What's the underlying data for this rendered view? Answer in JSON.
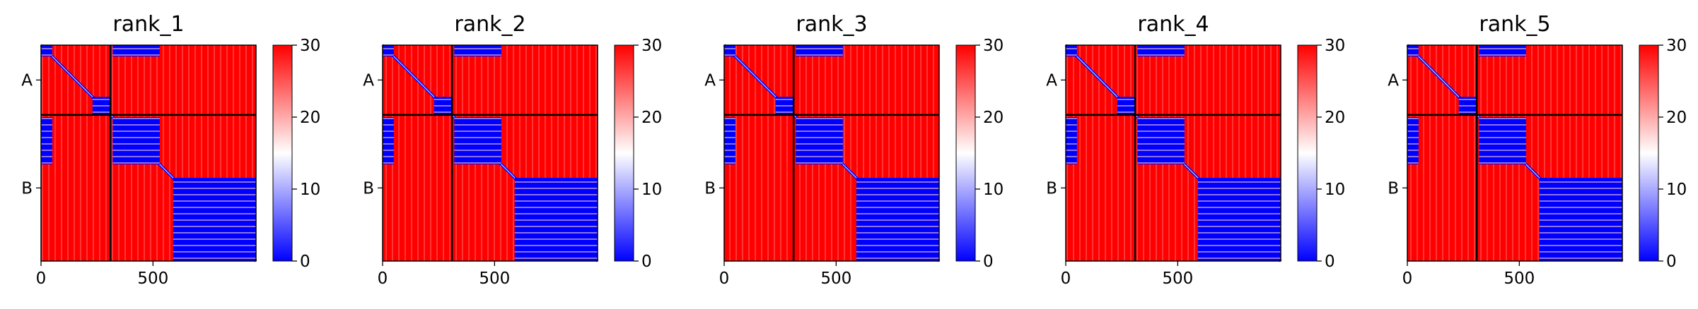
{
  "chart_data": [
    {
      "type": "heatmap",
      "title": "rank_1",
      "x_ticks": [
        0,
        500
      ],
      "y_ticks": [
        "A",
        "B"
      ],
      "xlim": [
        0,
        960
      ],
      "chain_boundaries": [
        310
      ],
      "colorbar": {
        "min": 0,
        "max": 30,
        "ticks": [
          "0",
          "10",
          "20",
          "30"
        ],
        "colormap": "bwr"
      },
      "low_blocks": [
        [
          0,
          310,
          0,
          310,
          "diag"
        ],
        [
          310,
          960,
          310,
          960,
          "diag"
        ],
        [
          0,
          50,
          0,
          50,
          "full"
        ],
        [
          230,
          310,
          230,
          310,
          "full"
        ],
        [
          320,
          530,
          320,
          530,
          "full"
        ],
        [
          590,
          960,
          590,
          960,
          "full"
        ],
        [
          320,
          530,
          0,
          50,
          "full"
        ],
        [
          0,
          50,
          320,
          530,
          "full"
        ]
      ]
    },
    {
      "type": "heatmap",
      "title": "rank_2",
      "x_ticks": [
        0,
        500
      ],
      "y_ticks": [
        "A",
        "B"
      ],
      "xlim": [
        0,
        960
      ],
      "chain_boundaries": [
        310
      ],
      "colorbar": {
        "min": 0,
        "max": 30,
        "ticks": [
          "0",
          "10",
          "20",
          "30"
        ],
        "colormap": "bwr"
      },
      "low_blocks": [
        [
          0,
          310,
          0,
          310,
          "diag"
        ],
        [
          310,
          960,
          310,
          960,
          "diag"
        ],
        [
          0,
          50,
          0,
          50,
          "full"
        ],
        [
          230,
          310,
          230,
          310,
          "full"
        ],
        [
          320,
          530,
          320,
          530,
          "full"
        ],
        [
          590,
          960,
          590,
          960,
          "full"
        ],
        [
          320,
          530,
          0,
          50,
          "full"
        ],
        [
          0,
          50,
          320,
          530,
          "full"
        ]
      ]
    },
    {
      "type": "heatmap",
      "title": "rank_3",
      "x_ticks": [
        0,
        500
      ],
      "y_ticks": [
        "A",
        "B"
      ],
      "xlim": [
        0,
        960
      ],
      "chain_boundaries": [
        310
      ],
      "colorbar": {
        "min": 0,
        "max": 30,
        "ticks": [
          "0",
          "10",
          "20",
          "30"
        ],
        "colormap": "bwr"
      },
      "low_blocks": [
        [
          0,
          310,
          0,
          310,
          "diag"
        ],
        [
          310,
          960,
          310,
          960,
          "diag"
        ],
        [
          0,
          50,
          0,
          50,
          "full"
        ],
        [
          230,
          310,
          230,
          310,
          "full"
        ],
        [
          320,
          530,
          320,
          530,
          "full"
        ],
        [
          590,
          960,
          590,
          960,
          "full"
        ],
        [
          320,
          530,
          0,
          50,
          "full"
        ],
        [
          0,
          50,
          320,
          530,
          "full"
        ]
      ]
    },
    {
      "type": "heatmap",
      "title": "rank_4",
      "x_ticks": [
        0,
        500
      ],
      "y_ticks": [
        "A",
        "B"
      ],
      "xlim": [
        0,
        960
      ],
      "chain_boundaries": [
        310
      ],
      "colorbar": {
        "min": 0,
        "max": 30,
        "ticks": [
          "0",
          "10",
          "20",
          "30"
        ],
        "colormap": "bwr"
      },
      "low_blocks": [
        [
          0,
          310,
          0,
          310,
          "diag"
        ],
        [
          310,
          960,
          310,
          960,
          "diag"
        ],
        [
          0,
          50,
          0,
          50,
          "full"
        ],
        [
          230,
          310,
          230,
          310,
          "full"
        ],
        [
          320,
          530,
          320,
          530,
          "full"
        ],
        [
          590,
          960,
          590,
          960,
          "full"
        ],
        [
          320,
          530,
          0,
          50,
          "full"
        ],
        [
          0,
          50,
          320,
          530,
          "full"
        ]
      ]
    },
    {
      "type": "heatmap",
      "title": "rank_5",
      "x_ticks": [
        0,
        500
      ],
      "y_ticks": [
        "A",
        "B"
      ],
      "xlim": [
        0,
        960
      ],
      "chain_boundaries": [
        310
      ],
      "colorbar": {
        "min": 0,
        "max": 30,
        "ticks": [
          "0",
          "10",
          "20",
          "30"
        ],
        "colormap": "bwr"
      },
      "low_blocks": [
        [
          0,
          310,
          0,
          310,
          "diag"
        ],
        [
          310,
          960,
          310,
          960,
          "diag"
        ],
        [
          0,
          50,
          0,
          50,
          "full"
        ],
        [
          230,
          310,
          230,
          310,
          "full"
        ],
        [
          320,
          530,
          320,
          530,
          "full"
        ],
        [
          590,
          960,
          590,
          960,
          "full"
        ],
        [
          320,
          530,
          0,
          50,
          "full"
        ],
        [
          0,
          50,
          320,
          530,
          "full"
        ]
      ]
    }
  ],
  "colors": {
    "low": "#0000ff",
    "mid": "#ffffff",
    "high": "#ff0000",
    "boundary": "#000000"
  }
}
